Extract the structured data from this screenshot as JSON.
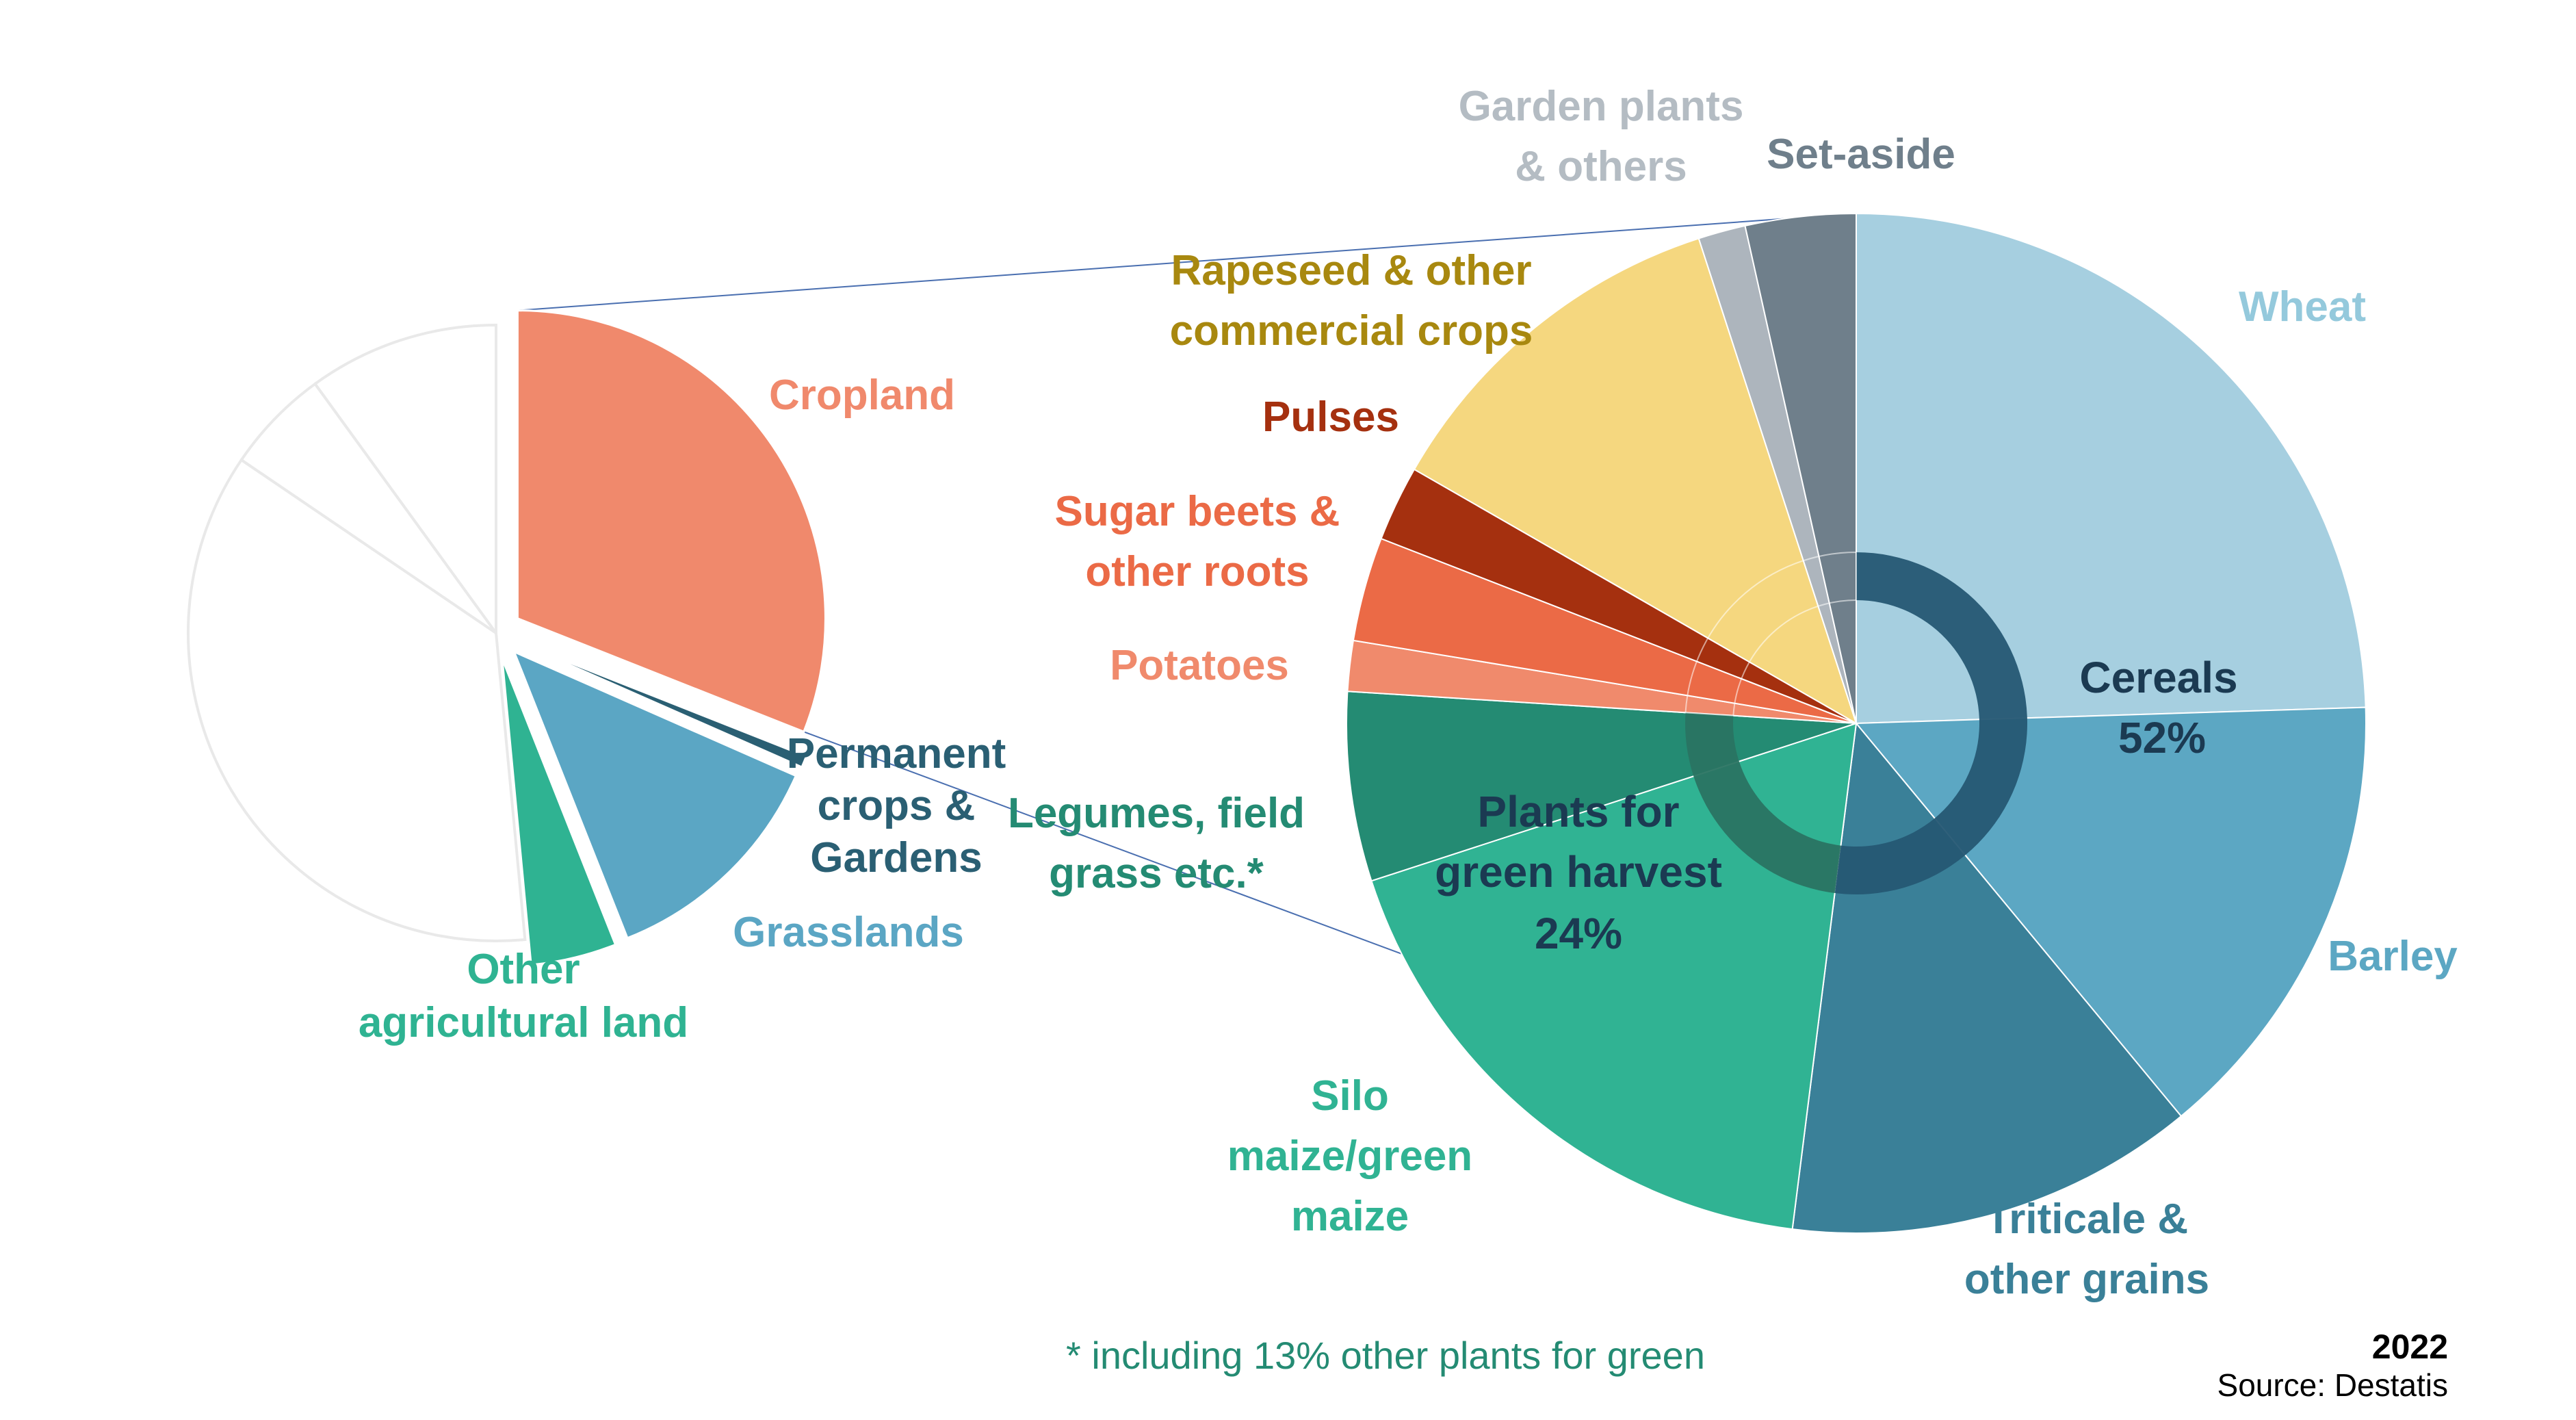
{
  "chart_data": [
    {
      "type": "pie",
      "name": "land-use",
      "slices": [
        {
          "label": "Cropland",
          "value": 31,
          "color": "#f0896c",
          "exploded": true
        },
        {
          "label": "Permanent crops & Gardens",
          "value": 0.6,
          "color": "#2a5f73",
          "exploded": true
        },
        {
          "label": "Grasslands",
          "value": 12.4,
          "color": "#5ba6c4",
          "exploded": true
        },
        {
          "label": "Other agricultural land",
          "value": 4.5,
          "color": "#2fb392",
          "exploded": true
        },
        {
          "label": "",
          "value": 36,
          "color": "#ffffff",
          "exploded": false
        },
        {
          "label": "",
          "value": 5.5,
          "color": "#ffffff",
          "exploded": false
        },
        {
          "label": "",
          "value": 10,
          "color": "#ffffff",
          "exploded": false
        }
      ]
    },
    {
      "type": "pie",
      "name": "cropland-breakdown",
      "slices": [
        {
          "label": "Wheat",
          "value": 24.5,
          "color": "#a6cfe0",
          "group": "Cereals"
        },
        {
          "label": "Barley",
          "value": 14.5,
          "color": "#5ca7c3",
          "group": "Cereals"
        },
        {
          "label": "Triticale & other grains",
          "value": 13,
          "color": "#3a8098",
          "group": "Cereals"
        },
        {
          "label": "Silo maize/green maize",
          "value": 18,
          "color": "#30b393",
          "group": "Plants for green harvest"
        },
        {
          "label": "Legumes, field grass etc.*",
          "value": 6,
          "color": "#248b73",
          "group": "Plants for green harvest"
        },
        {
          "label": "Potatoes",
          "value": 1.6,
          "color": "#f08a6c",
          "group": "Root crops"
        },
        {
          "label": "Sugar beets & other roots",
          "value": 3.3,
          "color": "#eb6a46",
          "group": "Root crops"
        },
        {
          "label": "Pulses",
          "value": 2.4,
          "color": "#a5300f",
          "group": "Pulses"
        },
        {
          "label": "Rapeseed & other commercial crops",
          "value": 11.7,
          "color": "#f5d77f",
          "group": "Commercial crops"
        },
        {
          "label": "Garden plants & others",
          "value": 1.5,
          "color": "#adb5bd",
          "group": "Other"
        },
        {
          "label": "Set-aside",
          "value": 3.5,
          "color": "#6f7f8b",
          "group": "Other"
        }
      ],
      "inner_ring": [
        {
          "label": "Cereals",
          "percent": "52%",
          "value": 52,
          "color": "#255773"
        },
        {
          "label": "Plants for green harvest",
          "percent": "24%",
          "value": 24,
          "color": "#2a7462"
        }
      ]
    }
  ],
  "labels": {
    "cropland": "Cropland",
    "permanent_1": "Permanent",
    "permanent_2": "crops &",
    "permanent_3": "Gardens",
    "grasslands": "Grasslands",
    "other_1": "Other",
    "other_2": "agricultural land",
    "garden_1": "Garden plants",
    "garden_2": "& others",
    "setaside": "Set-aside",
    "rapeseed_1": "Rapeseed & other",
    "rapeseed_2": "commercial crops",
    "pulses": "Pulses",
    "sugar_1": "Sugar beets &",
    "sugar_2": "other roots",
    "potatoes": "Potatoes",
    "legumes_1": "Legumes, field",
    "legumes_2": "grass etc.*",
    "silo_1": "Silo",
    "silo_2": "maize/green",
    "silo_3": "maize",
    "wheat": "Wheat",
    "barley": "Barley",
    "triticale_1": "Triticale &",
    "triticale_2": "other grains",
    "cereals": "Cereals",
    "cereals_pct": "52%",
    "green_1": "Plants for",
    "green_2": "green harvest",
    "green_pct": "24%"
  },
  "footnote": "* including 13% other plants for green",
  "year": "2022",
  "source": "Source: Destatis",
  "colors": {
    "cropland": "#f0896c",
    "permanent": "#2a5f73",
    "grasslands": "#5ba6c4",
    "other": "#2fb392",
    "garden": "#b4bcc3",
    "setaside": "#6f7f8b",
    "rapeseed": "#a8880f",
    "pulses": "#a5300f",
    "sugar": "#eb6a46",
    "potatoes": "#f08a6c",
    "legumes": "#248b73",
    "silo": "#30b393",
    "wheat": "#94c9dc",
    "barley": "#5ca7c3",
    "triticale": "#3a8098",
    "footnote": "#248b73",
    "connector": "#4a6fb0"
  }
}
